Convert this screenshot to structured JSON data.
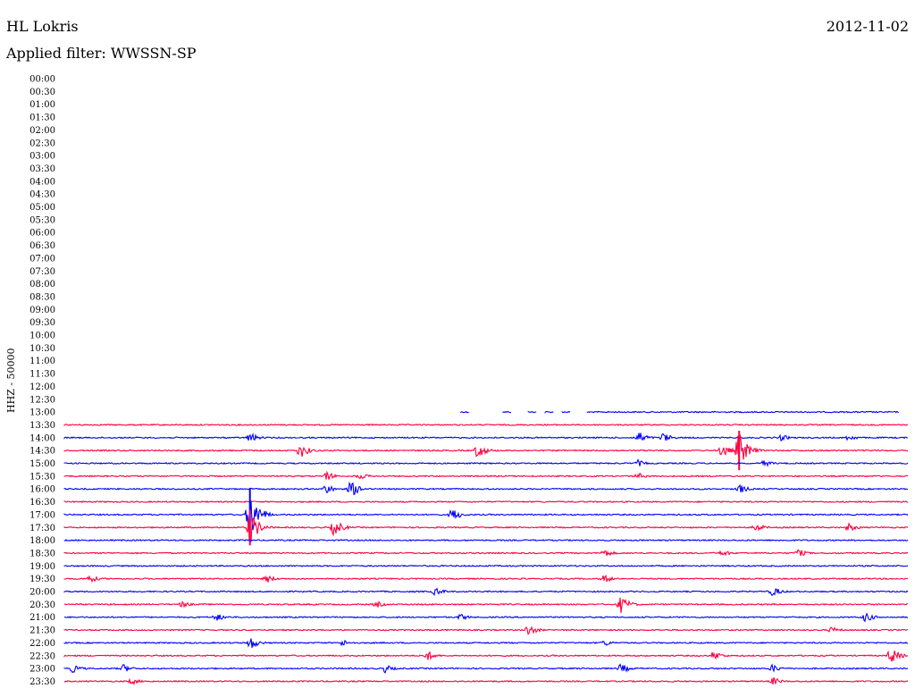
{
  "header": {
    "station": "HL Lokris",
    "date": "2012-11-02",
    "filter": "Applied filter: WWSSN-SP"
  },
  "chart_data": {
    "type": "line",
    "title": "HL Lokris",
    "channel_label": "HHZ - 50000",
    "row_labels": [
      "00:00",
      "00:30",
      "01:00",
      "01:30",
      "02:00",
      "02:30",
      "03:00",
      "03:30",
      "04:00",
      "04:30",
      "05:00",
      "05:30",
      "06:00",
      "06:30",
      "07:00",
      "07:30",
      "08:00",
      "08:30",
      "09:00",
      "09:30",
      "10:00",
      "10:30",
      "11:00",
      "11:30",
      "12:00",
      "12:30",
      "13:00",
      "13:30",
      "14:00",
      "14:30",
      "15:00",
      "15:30",
      "16:00",
      "16:30",
      "17:00",
      "17:30",
      "18:00",
      "18:30",
      "19:00",
      "19:30",
      "20:00",
      "20:30",
      "21:00",
      "21:30",
      "22:00",
      "22:30",
      "23:00",
      "23:30"
    ],
    "colors": {
      "even_rows": "#ff0040",
      "odd_rows": "#0000ff"
    },
    "traces": [
      {
        "row": "13:00",
        "segments": [
          [
            0.47,
            0.48
          ],
          [
            0.52,
            0.53
          ],
          [
            0.55,
            0.56
          ],
          [
            0.57,
            0.58
          ],
          [
            0.59,
            0.6
          ],
          [
            0.62,
            0.63
          ],
          [
            0.63,
            0.99
          ]
        ],
        "events": []
      },
      {
        "row": "13:30",
        "segments": [
          [
            0,
            1
          ]
        ],
        "events": []
      },
      {
        "row": "14:00",
        "segments": [
          [
            0,
            1
          ]
        ],
        "events": [
          {
            "x": 0.22,
            "amp": 6
          },
          {
            "x": 0.68,
            "amp": 8
          },
          {
            "x": 0.71,
            "amp": 6
          },
          {
            "x": 0.85,
            "amp": 4
          },
          {
            "x": 0.93,
            "amp": 4
          }
        ]
      },
      {
        "row": "14:30",
        "segments": [
          [
            0,
            1
          ]
        ],
        "events": [
          {
            "x": 0.28,
            "amp": 9
          },
          {
            "x": 0.49,
            "amp": 9
          },
          {
            "x": 0.78,
            "amp": 8
          },
          {
            "x": 0.8,
            "amp": 22
          }
        ]
      },
      {
        "row": "15:00",
        "segments": [
          [
            0,
            1
          ]
        ],
        "events": [
          {
            "x": 0.68,
            "amp": 4
          },
          {
            "x": 0.83,
            "amp": 4
          }
        ]
      },
      {
        "row": "15:30",
        "segments": [
          [
            0,
            1
          ]
        ],
        "events": [
          {
            "x": 0.31,
            "amp": 6
          },
          {
            "x": 0.35,
            "amp": 4
          },
          {
            "x": 0.68,
            "amp": 4
          }
        ]
      },
      {
        "row": "16:00",
        "segments": [
          [
            0,
            1
          ]
        ],
        "events": [
          {
            "x": 0.31,
            "amp": 6
          },
          {
            "x": 0.34,
            "amp": 10
          },
          {
            "x": 0.8,
            "amp": 6
          }
        ]
      },
      {
        "row": "16:30",
        "segments": [
          [
            0,
            1
          ]
        ],
        "events": []
      },
      {
        "row": "17:00",
        "segments": [
          [
            0,
            1
          ]
        ],
        "events": [
          {
            "x": 0.22,
            "amp": 30
          },
          {
            "x": 0.46,
            "amp": 8
          }
        ]
      },
      {
        "row": "17:30",
        "segments": [
          [
            0,
            1
          ]
        ],
        "events": [
          {
            "x": 0.22,
            "amp": 20
          },
          {
            "x": 0.32,
            "amp": 10
          },
          {
            "x": 0.82,
            "amp": 5
          },
          {
            "x": 0.93,
            "amp": 5
          }
        ]
      },
      {
        "row": "18:00",
        "segments": [
          [
            0,
            1
          ]
        ],
        "events": []
      },
      {
        "row": "18:30",
        "segments": [
          [
            0,
            1
          ]
        ],
        "events": [
          {
            "x": 0.64,
            "amp": 5
          },
          {
            "x": 0.78,
            "amp": 4
          },
          {
            "x": 0.87,
            "amp": 5
          }
        ]
      },
      {
        "row": "19:00",
        "segments": [
          [
            0,
            1
          ]
        ],
        "events": []
      },
      {
        "row": "19:30",
        "segments": [
          [
            0,
            1
          ]
        ],
        "events": [
          {
            "x": 0.03,
            "amp": 5
          },
          {
            "x": 0.24,
            "amp": 5
          },
          {
            "x": 0.64,
            "amp": 5
          }
        ]
      },
      {
        "row": "20:00",
        "segments": [
          [
            0,
            1
          ]
        ],
        "events": [
          {
            "x": 0.44,
            "amp": 5
          },
          {
            "x": 0.84,
            "amp": 6
          }
        ]
      },
      {
        "row": "20:30",
        "segments": [
          [
            0,
            1
          ]
        ],
        "events": [
          {
            "x": 0.14,
            "amp": 4
          },
          {
            "x": 0.37,
            "amp": 4
          },
          {
            "x": 0.66,
            "amp": 10
          }
        ]
      },
      {
        "row": "21:00",
        "segments": [
          [
            0,
            1
          ]
        ],
        "events": [
          {
            "x": 0.18,
            "amp": 5
          },
          {
            "x": 0.47,
            "amp": 4
          },
          {
            "x": 0.95,
            "amp": 6
          }
        ]
      },
      {
        "row": "21:30",
        "segments": [
          [
            0,
            1
          ]
        ],
        "events": [
          {
            "x": 0.55,
            "amp": 7
          },
          {
            "x": 0.91,
            "amp": 4
          }
        ]
      },
      {
        "row": "22:00",
        "segments": [
          [
            0,
            1
          ]
        ],
        "events": [
          {
            "x": 0.22,
            "amp": 8
          },
          {
            "x": 0.33,
            "amp": 4
          },
          {
            "x": 0.64,
            "amp": 4
          }
        ]
      },
      {
        "row": "22:30",
        "segments": [
          [
            0,
            1
          ]
        ],
        "events": [
          {
            "x": 0.43,
            "amp": 6
          },
          {
            "x": 0.77,
            "amp": 6
          },
          {
            "x": 0.98,
            "amp": 10
          }
        ]
      },
      {
        "row": "23:00",
        "segments": [
          [
            0,
            1
          ]
        ],
        "events": [
          {
            "x": 0.01,
            "amp": 5
          },
          {
            "x": 0.07,
            "amp": 5
          },
          {
            "x": 0.38,
            "amp": 5
          },
          {
            "x": 0.66,
            "amp": 6
          },
          {
            "x": 0.84,
            "amp": 5
          }
        ]
      },
      {
        "row": "23:30",
        "segments": [
          [
            0,
            1
          ]
        ],
        "events": [
          {
            "x": 0.08,
            "amp": 4
          },
          {
            "x": 0.84,
            "amp": 5
          }
        ]
      }
    ]
  }
}
